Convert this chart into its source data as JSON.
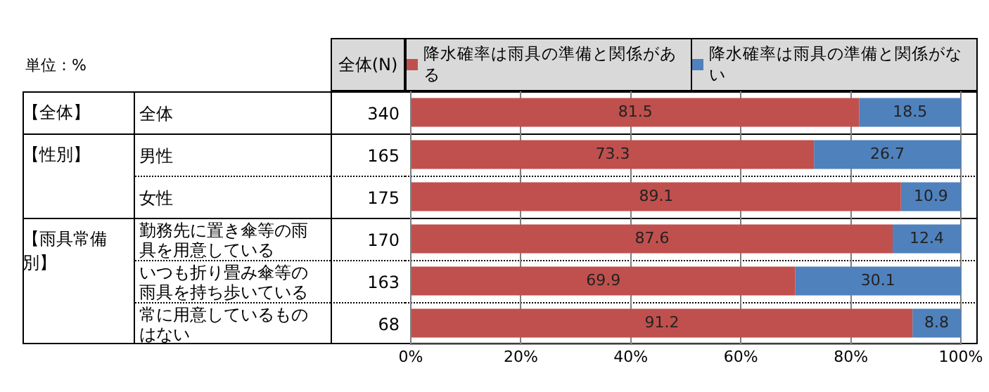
{
  "chart_data": {
    "type": "bar",
    "orientation": "horizontal",
    "stacked": true,
    "categories": [
      "全体",
      "男性",
      "女性",
      "勤務先に置き傘等の雨具を用意している",
      "いつも折り畳み傘等の雨具を持ち歩いている",
      "常に用意しているものはない"
    ],
    "series": [
      {
        "name": "降水確率は雨具の準備と関係がある",
        "color": "#c0504d",
        "values": [
          81.5,
          73.3,
          89.1,
          87.6,
          69.9,
          91.2
        ]
      },
      {
        "name": "降水確率は雨具の準備と関係がない",
        "color": "#4f81bd",
        "values": [
          18.5,
          26.7,
          10.9,
          12.4,
          30.1,
          8.8
        ]
      }
    ],
    "xlim": [
      0,
      100
    ],
    "xticks": [
      {
        "value": 0,
        "label": "0%"
      },
      {
        "value": 20,
        "label": "20%"
      },
      {
        "value": 40,
        "label": "40%"
      },
      {
        "value": 60,
        "label": "60%"
      },
      {
        "value": 80,
        "label": "80%"
      },
      {
        "value": 100,
        "label": "100%"
      }
    ],
    "grid": "x",
    "legend": "top",
    "data_labels": true,
    "annotations": [
      "単位：%",
      "全体(N)",
      "【全体】",
      "【性別】",
      "【雨具常備別】",
      "340",
      "165",
      "175",
      "170",
      "163",
      "68"
    ]
  }
}
